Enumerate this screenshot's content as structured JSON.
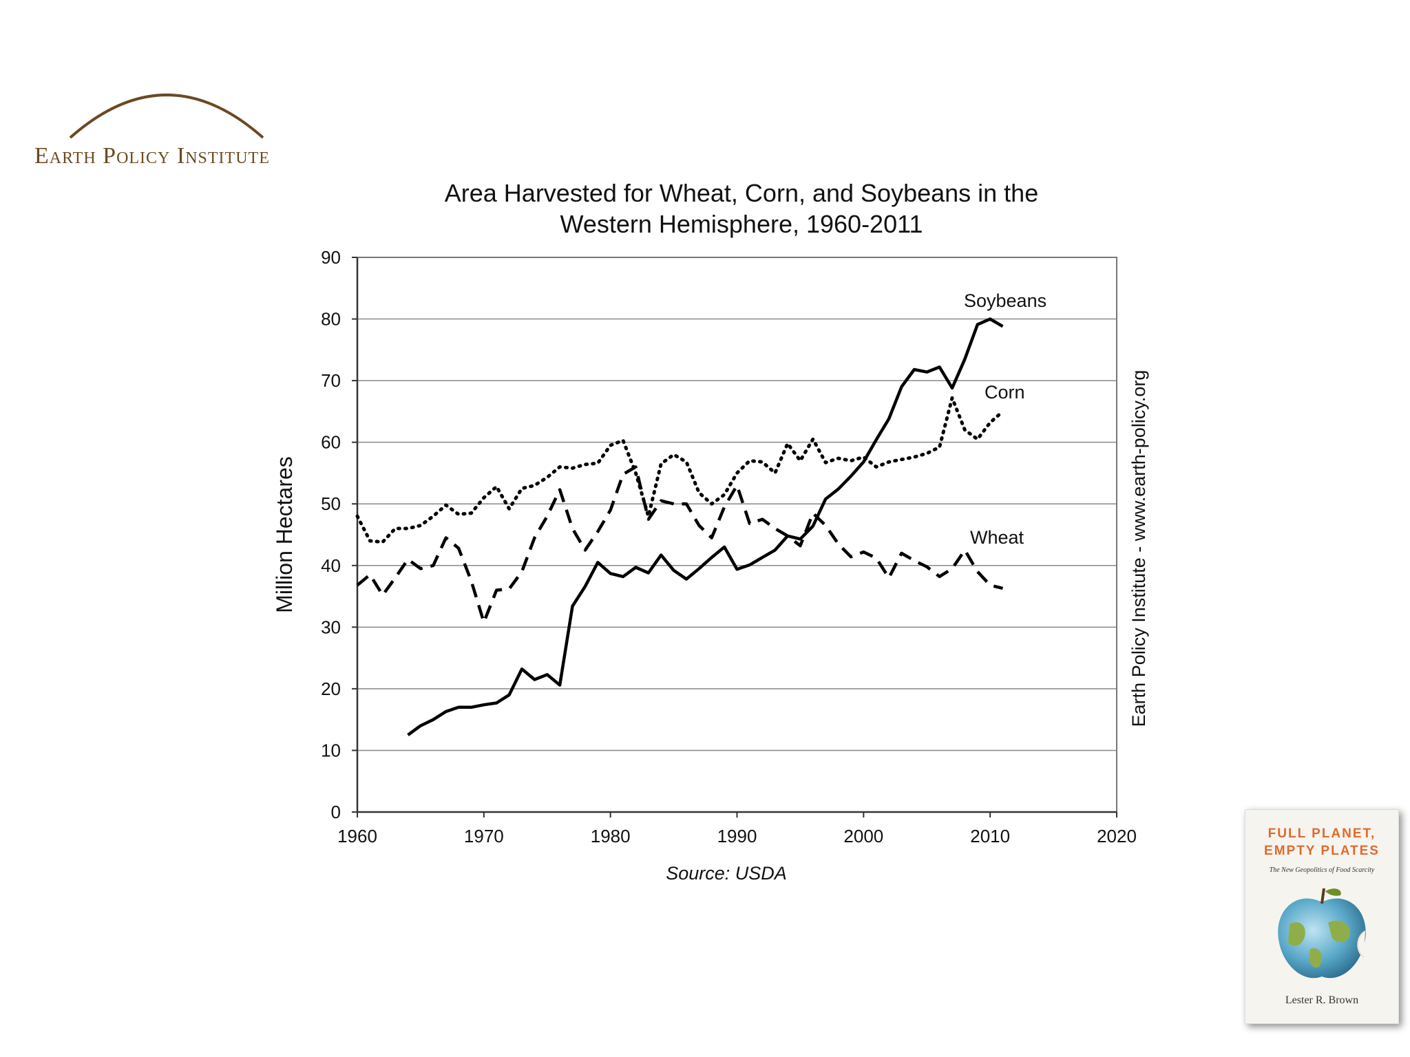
{
  "logo": {
    "text": "Earth Policy Institute"
  },
  "book_cover": {
    "title_line1": "FULL PLANET,",
    "title_line2": "EMPTY PLATES",
    "subtitle": "The New Geopolitics of Food Scarcity",
    "author": "Lester R. Brown"
  },
  "side_label": "Earth Policy Institute - www.earth-policy.org",
  "source_note": "Source: USDA",
  "chart_data": {
    "type": "line",
    "title_line1": "Area Harvested for Wheat, Corn, and Soybeans in the",
    "title_line2": "Western Hemisphere, 1960-2011",
    "xlabel": "",
    "ylabel": "Million Hectares",
    "xlim": [
      1960,
      2020
    ],
    "ylim": [
      0,
      90
    ],
    "xticks": [
      1960,
      1970,
      1980,
      1990,
      2000,
      2010,
      2020
    ],
    "yticks": [
      0,
      10,
      20,
      30,
      40,
      50,
      60,
      70,
      80,
      90
    ],
    "grid": true,
    "series": [
      {
        "name": "Soybeans",
        "style": "solid",
        "x": [
          1964,
          1965,
          1966,
          1967,
          1968,
          1969,
          1970,
          1971,
          1972,
          1973,
          1974,
          1975,
          1976,
          1977,
          1978,
          1979,
          1980,
          1981,
          1982,
          1983,
          1984,
          1985,
          1986,
          1987,
          1988,
          1989,
          1990,
          1991,
          1992,
          1993,
          1994,
          1995,
          1996,
          1997,
          1998,
          1999,
          2000,
          2001,
          2002,
          2003,
          2004,
          2005,
          2006,
          2007,
          2008,
          2009,
          2010,
          2011
        ],
        "values": [
          12.5,
          14,
          15,
          16.3,
          17,
          17,
          17.4,
          17.7,
          19,
          23.2,
          21.5,
          22.3,
          20.6,
          33.4,
          36.6,
          40.5,
          38.7,
          38.2,
          39.7,
          38.8,
          41.7,
          39.2,
          37.8,
          39.5,
          41.3,
          43,
          39.4,
          40.1,
          41.3,
          42.5,
          44.8,
          44.3,
          46.4,
          50.8,
          52.4,
          54.5,
          56.8,
          60.4,
          63.8,
          69,
          71.8,
          71.4,
          72.2,
          68.8,
          73.5,
          79.1,
          80,
          78.8
        ]
      },
      {
        "name": "Corn",
        "style": "dotted",
        "x": [
          1960,
          1961,
          1962,
          1963,
          1964,
          1965,
          1966,
          1967,
          1968,
          1969,
          1970,
          1971,
          1972,
          1973,
          1974,
          1975,
          1976,
          1977,
          1978,
          1979,
          1980,
          1981,
          1982,
          1983,
          1984,
          1985,
          1986,
          1987,
          1988,
          1989,
          1990,
          1991,
          1992,
          1993,
          1994,
          1995,
          1996,
          1997,
          1998,
          1999,
          2000,
          2001,
          2002,
          2003,
          2004,
          2005,
          2006,
          2007,
          2008,
          2009,
          2010,
          2011
        ],
        "values": [
          48,
          44,
          43.8,
          46,
          46,
          46.5,
          48,
          49.8,
          48.3,
          48.5,
          51,
          52.8,
          49.2,
          52.5,
          53,
          54.3,
          56,
          55.8,
          56.4,
          56.6,
          59.5,
          60.3,
          55,
          48,
          56.5,
          58,
          56.8,
          51.8,
          50,
          51.5,
          55,
          57,
          56.8,
          55,
          59.8,
          57,
          60.5,
          56.7,
          57.4,
          57,
          57.6,
          56,
          56.8,
          57.2,
          57.6,
          58.2,
          59.2,
          67.2,
          62,
          60.5,
          63.2,
          65
        ]
      },
      {
        "name": "Wheat",
        "style": "dashed",
        "x": [
          1960,
          1961,
          1962,
          1963,
          1964,
          1965,
          1966,
          1967,
          1968,
          1969,
          1970,
          1971,
          1972,
          1973,
          1974,
          1975,
          1976,
          1977,
          1978,
          1979,
          1980,
          1981,
          1982,
          1983,
          1984,
          1985,
          1986,
          1987,
          1988,
          1989,
          1990,
          1991,
          1992,
          1993,
          1994,
          1995,
          1996,
          1997,
          1998,
          1999,
          2000,
          2001,
          2002,
          2003,
          2004,
          2005,
          2006,
          2007,
          2008,
          2009,
          2010,
          2011
        ],
        "values": [
          36.8,
          38.5,
          35.2,
          38,
          41,
          39.5,
          40,
          44.5,
          42.8,
          37.5,
          30.8,
          36,
          36.2,
          39,
          44.5,
          48,
          52.3,
          46,
          42.5,
          45.5,
          49,
          54.8,
          56,
          47.5,
          50.5,
          50,
          50,
          46.5,
          44.5,
          49.5,
          53,
          46.8,
          47.5,
          46,
          44.8,
          43.2,
          48.5,
          46.5,
          43.5,
          41.4,
          42.2,
          41.2,
          38,
          42,
          40.8,
          39.8,
          38.2,
          39.5,
          42.5,
          39,
          36.8,
          36.3
        ]
      }
    ]
  }
}
